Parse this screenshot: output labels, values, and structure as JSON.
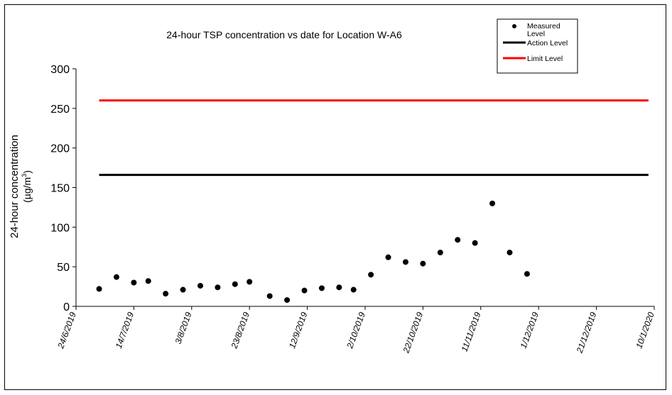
{
  "chart_data": {
    "type": "scatter",
    "title": "24-hour TSP concentration vs date for Location W-A6",
    "ylabel_line1": "24-hour concentration",
    "ylabel_line2_prefix": "(µg/m",
    "ylabel_line2_sup": "3",
    "ylabel_line2_suffix": ")",
    "xlabel": "",
    "ylim": [
      0,
      300
    ],
    "yticks": [
      "0",
      "50",
      "100",
      "150",
      "200",
      "250",
      "300"
    ],
    "xlim": [
      "24/6/2019",
      "10/1/2020"
    ],
    "xticks": [
      "24/6/2019",
      "14/7/2019",
      "3/8/2019",
      "23/8/2019",
      "12/9/2019",
      "2/10/2019",
      "22/10/2019",
      "11/11/2019",
      "1/12/2019",
      "21/12/2019",
      "10/1/2020"
    ],
    "grid": false,
    "legend_position": "top-right",
    "series": [
      {
        "name": "Measured Level",
        "color": "#000000",
        "marker": "circle",
        "points": [
          {
            "x": "2/7/2019",
            "y": 22
          },
          {
            "x": "8/7/2019",
            "y": 37
          },
          {
            "x": "14/7/2019",
            "y": 30
          },
          {
            "x": "19/7/2019",
            "y": 32
          },
          {
            "x": "25/7/2019",
            "y": 16
          },
          {
            "x": "31/7/2019",
            "y": 21
          },
          {
            "x": "6/8/2019",
            "y": 26
          },
          {
            "x": "12/8/2019",
            "y": 24
          },
          {
            "x": "18/8/2019",
            "y": 28
          },
          {
            "x": "23/8/2019",
            "y": 31
          },
          {
            "x": "30/8/2019",
            "y": 13
          },
          {
            "x": "5/9/2019",
            "y": 8
          },
          {
            "x": "11/9/2019",
            "y": 20
          },
          {
            "x": "17/9/2019",
            "y": 23
          },
          {
            "x": "23/9/2019",
            "y": 24
          },
          {
            "x": "28/9/2019",
            "y": 21
          },
          {
            "x": "4/10/2019",
            "y": 40
          },
          {
            "x": "10/10/2019",
            "y": 62
          },
          {
            "x": "16/10/2019",
            "y": 56
          },
          {
            "x": "22/10/2019",
            "y": 54
          },
          {
            "x": "28/10/2019",
            "y": 68
          },
          {
            "x": "3/11/2019",
            "y": 84
          },
          {
            "x": "9/11/2019",
            "y": 80
          },
          {
            "x": "15/11/2019",
            "y": 130
          },
          {
            "x": "21/11/2019",
            "y": 68
          },
          {
            "x": "27/11/2019",
            "y": 41
          }
        ]
      },
      {
        "name": "Action Level",
        "color": "#000000",
        "type": "line",
        "x": [
          "2/7/2019",
          "8/1/2020"
        ],
        "y": [
          166,
          166
        ]
      },
      {
        "name": "Limit Level",
        "color": "#ff0000",
        "type": "line",
        "x": [
          "2/7/2019",
          "8/1/2020"
        ],
        "y": [
          260,
          260
        ]
      }
    ]
  }
}
